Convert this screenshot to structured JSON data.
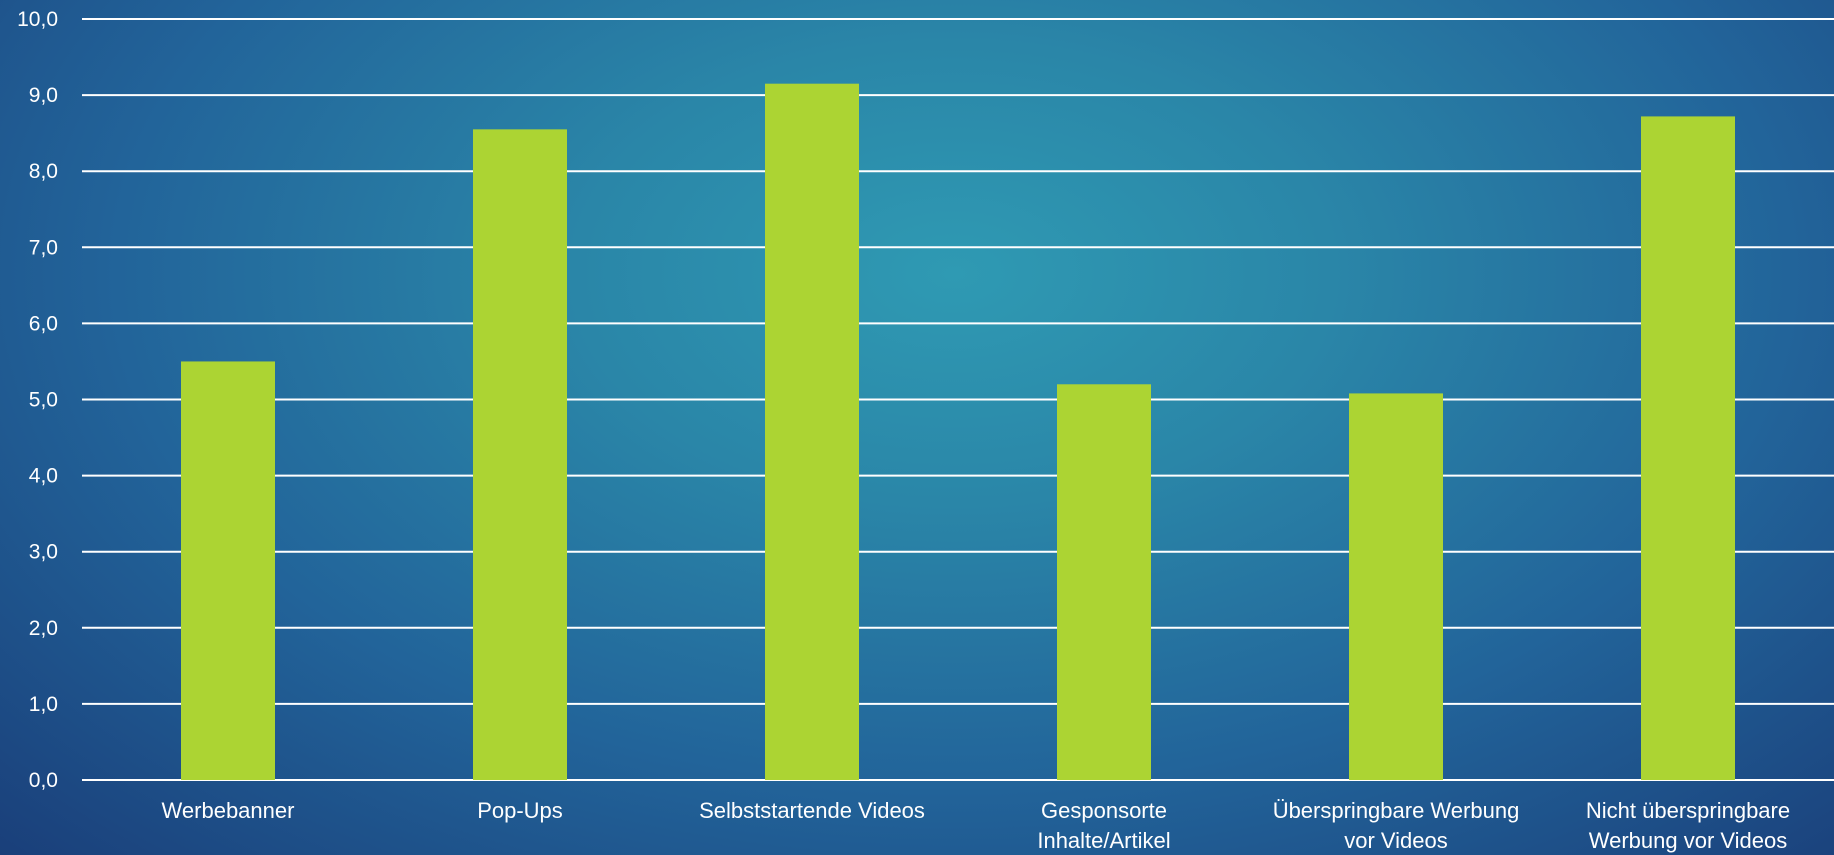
{
  "chart_data": {
    "type": "bar",
    "categories": [
      [
        "Werbebanner"
      ],
      [
        "Pop-Ups"
      ],
      [
        "Selbststartende Videos"
      ],
      [
        "Gesponsorte",
        "Inhalte/Artikel"
      ],
      [
        "Überspringbare Werbung",
        "vor Videos"
      ],
      [
        "Nicht überspringbare",
        "Werbung vor Videos"
      ]
    ],
    "values": [
      5.5,
      8.55,
      9.15,
      5.2,
      5.08,
      8.72
    ],
    "ylim": [
      0,
      10
    ],
    "yticks": [
      "0,0",
      "1,0",
      "2,0",
      "3,0",
      "4,0",
      "5,0",
      "6,0",
      "7,0",
      "8,0",
      "9,0",
      "10,0"
    ],
    "grid": true,
    "legend": "none",
    "title": "",
    "xlabel": "",
    "ylabel": "",
    "colors": {
      "bar": "#acd433",
      "gridline": "#ffffff",
      "text": "#ffffff"
    }
  }
}
